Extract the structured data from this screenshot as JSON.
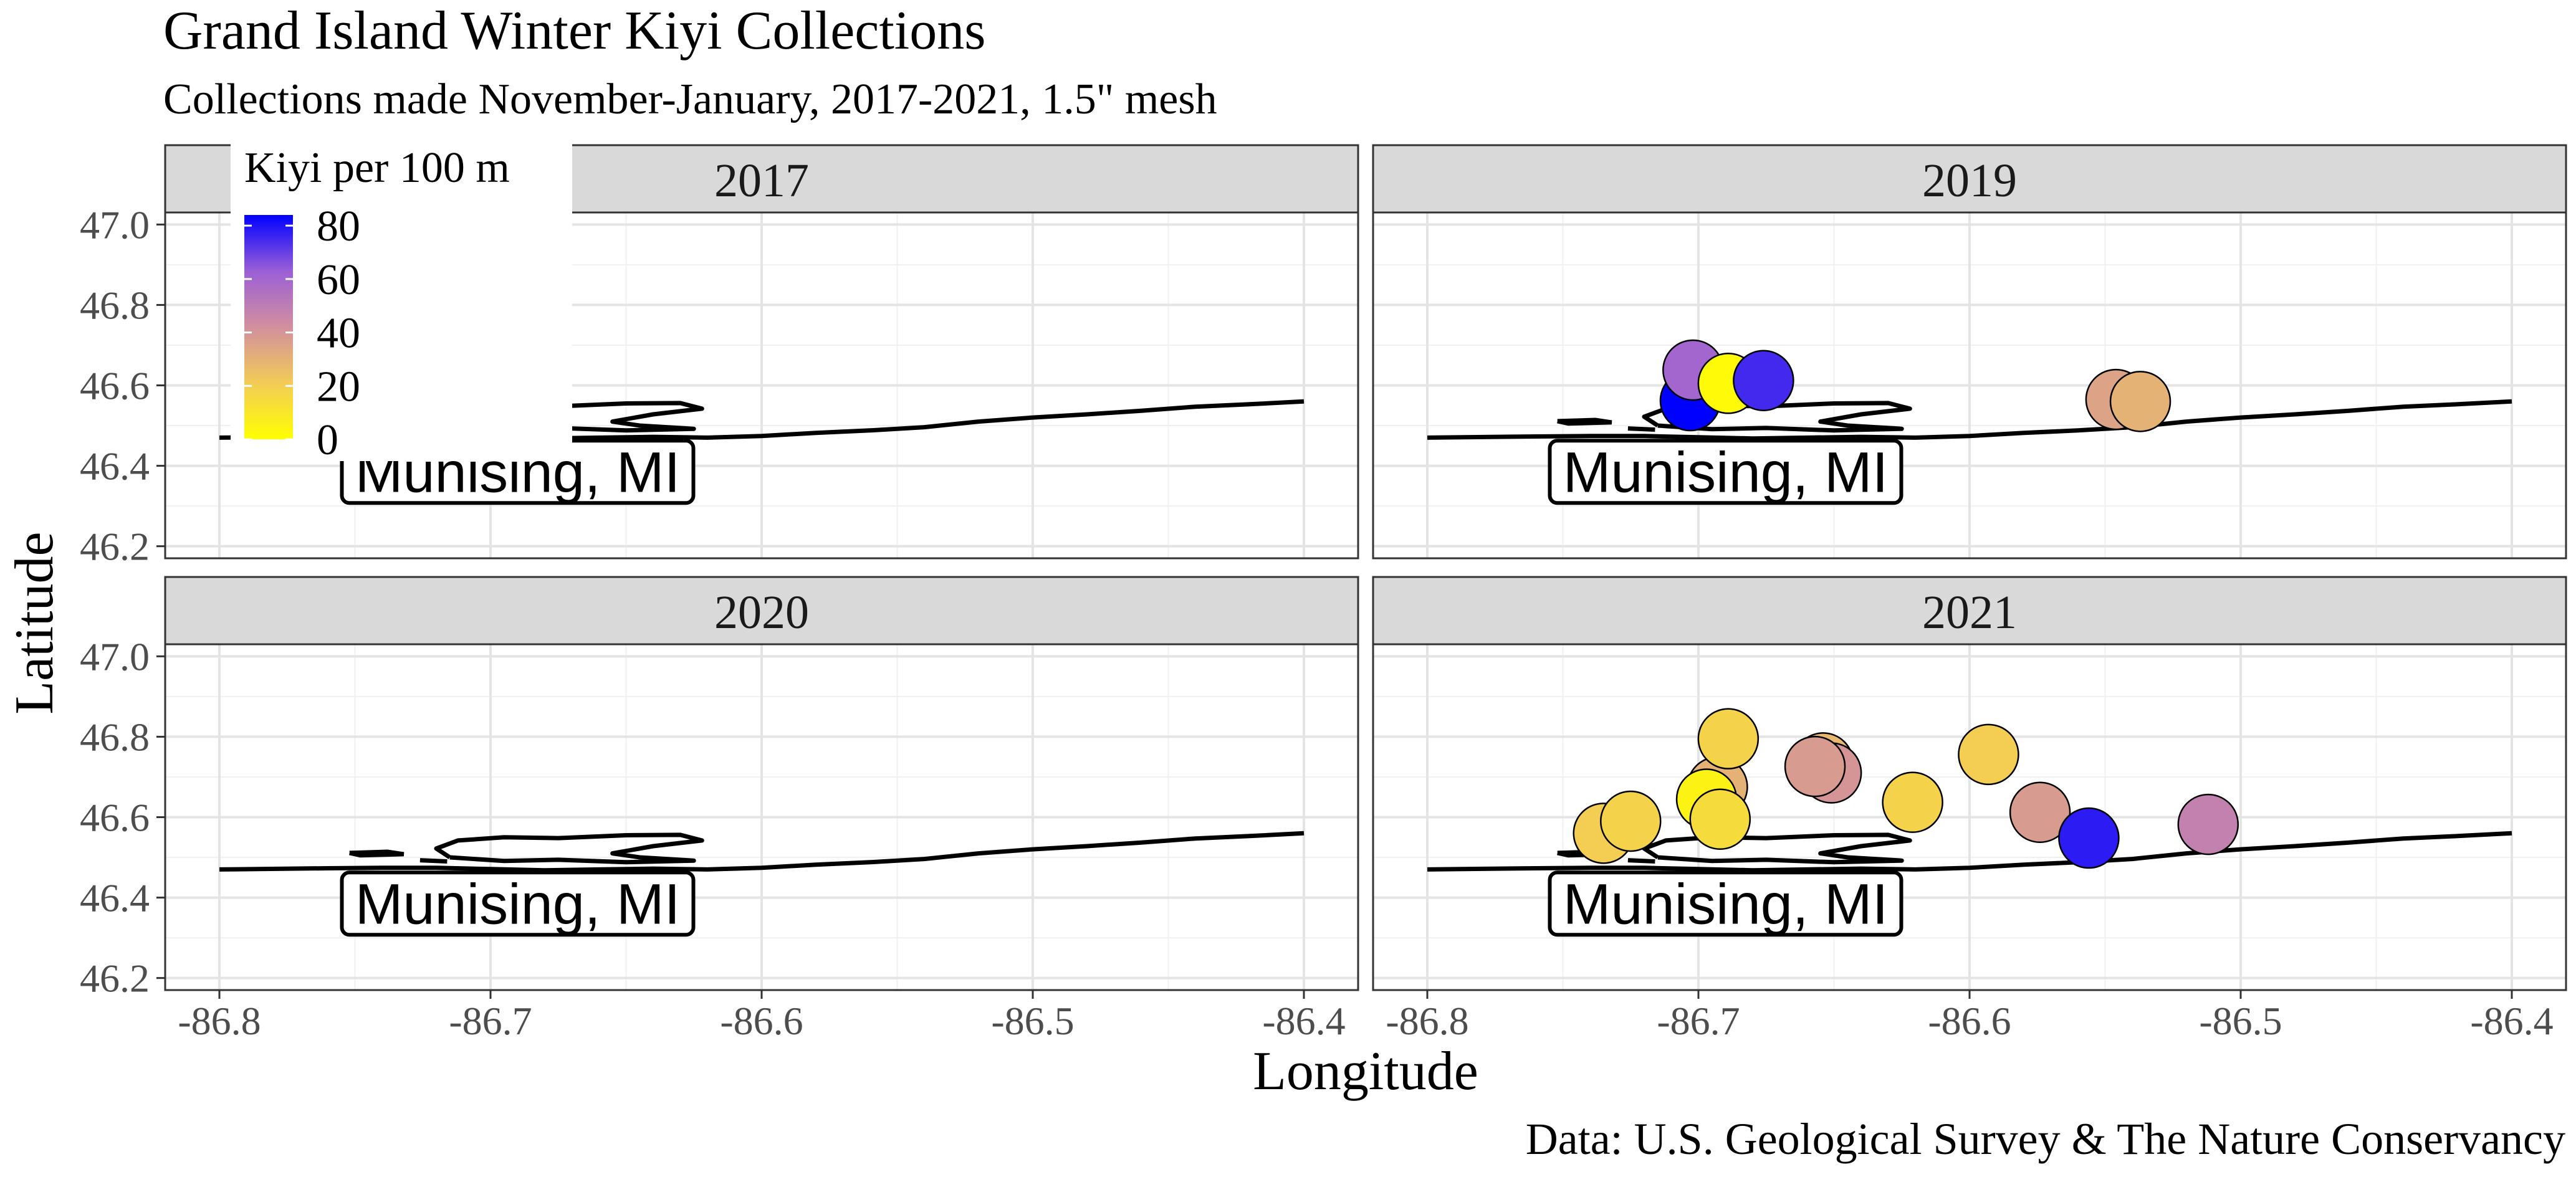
{
  "title": "Grand Island Winter Kiyi Collections",
  "subtitle": "Collections made November-January, 2017-2021, 1.5\" mesh",
  "x_axis_title": "Longitude",
  "y_axis_title": "Latitude",
  "caption": "Data: U.S. Geological Survey & The Nature Conservancy",
  "town_label": "Munising, MI",
  "legend": {
    "title": "Kiyi per 100 m",
    "ticks": [
      "80",
      "60",
      "40",
      "20",
      "0"
    ],
    "gradient_colors": [
      "#0000ff",
      "#9b5fd6",
      "#d28f9e",
      "#f2cc56",
      "#ffff00"
    ]
  },
  "x_ticks": [
    "-86.8",
    "-86.7",
    "-86.6",
    "-86.5",
    "-86.4"
  ],
  "y_ticks": [
    "47.0",
    "46.8",
    "46.6",
    "46.4",
    "46.2"
  ],
  "chart_data": {
    "type": "scatter",
    "xlim": [
      -86.82,
      -86.38
    ],
    "ylim": [
      46.17,
      47.03
    ],
    "x_breaks": [
      -86.8,
      -86.7,
      -86.6,
      -86.5,
      -86.4
    ],
    "y_breaks": [
      47.0,
      46.8,
      46.6,
      46.4,
      46.2
    ],
    "color_scale": {
      "name": "Kiyi per 100 m",
      "min": 0,
      "max": 84,
      "low": "#ffff00",
      "high": "#0000ff"
    },
    "grid": true,
    "legend_position": "top-left",
    "panels": [
      {
        "name": "2017",
        "points": []
      },
      {
        "name": "2019",
        "points": [
          {
            "lon": -86.703,
            "lat": 46.562,
            "kiyi": 84
          },
          {
            "lon": -86.702,
            "lat": 46.638,
            "kiyi": 60
          },
          {
            "lon": -86.689,
            "lat": 46.605,
            "kiyi": 2
          },
          {
            "lon": -86.676,
            "lat": 46.612,
            "kiyi": 75
          },
          {
            "lon": -86.546,
            "lat": 46.565,
            "kiyi": 35
          },
          {
            "lon": -86.537,
            "lat": 46.56,
            "kiyi": 30
          }
        ]
      },
      {
        "name": "2020",
        "points": []
      },
      {
        "name": "2021",
        "points": [
          {
            "lon": -86.735,
            "lat": 46.56,
            "kiyi": 20
          },
          {
            "lon": -86.725,
            "lat": 46.59,
            "kiyi": 18
          },
          {
            "lon": -86.693,
            "lat": 46.675,
            "kiyi": 30
          },
          {
            "lon": -86.697,
            "lat": 46.645,
            "kiyi": 5
          },
          {
            "lon": -86.692,
            "lat": 46.595,
            "kiyi": 15
          },
          {
            "lon": -86.689,
            "lat": 46.795,
            "kiyi": 18
          },
          {
            "lon": -86.654,
            "lat": 46.735,
            "kiyi": 28
          },
          {
            "lon": -86.651,
            "lat": 46.71,
            "kiyi": 40
          },
          {
            "lon": -86.657,
            "lat": 46.726,
            "kiyi": 38
          },
          {
            "lon": -86.621,
            "lat": 46.637,
            "kiyi": 18
          },
          {
            "lon": -86.593,
            "lat": 46.756,
            "kiyi": 20
          },
          {
            "lon": -86.574,
            "lat": 46.612,
            "kiyi": 38
          },
          {
            "lon": -86.556,
            "lat": 46.548,
            "kiyi": 78
          },
          {
            "lon": -86.512,
            "lat": 46.582,
            "kiyi": 48
          }
        ]
      }
    ]
  }
}
